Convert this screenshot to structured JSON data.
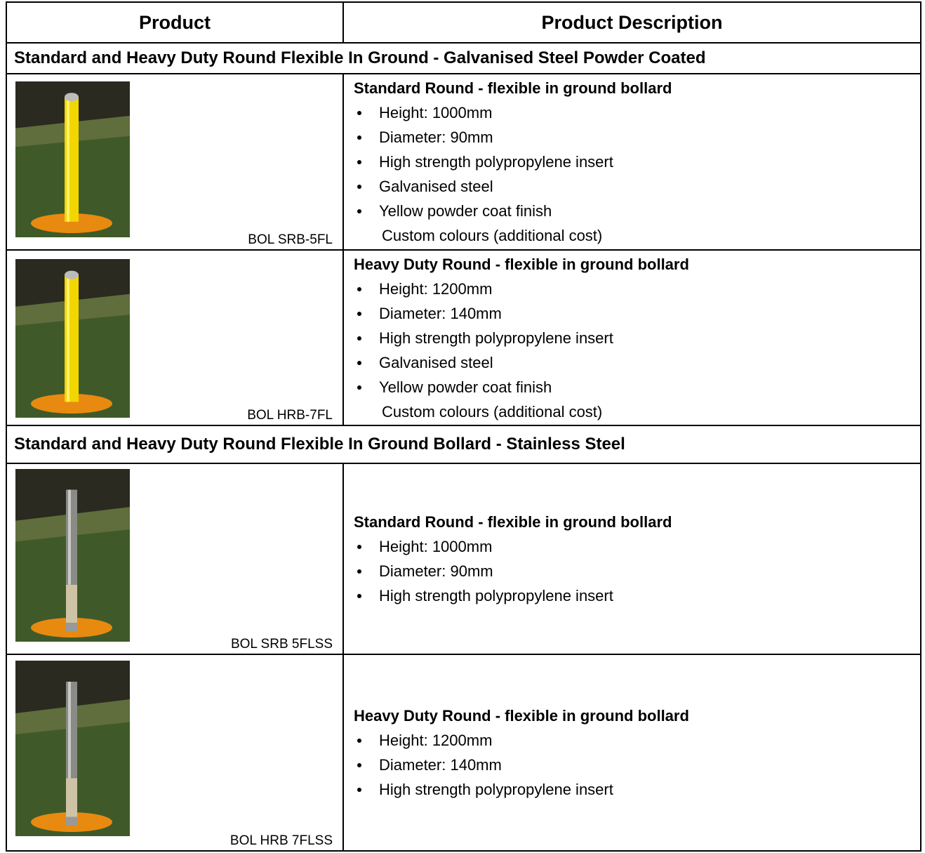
{
  "header": {
    "columns": [
      "Product",
      "Product Description"
    ]
  },
  "sections": [
    {
      "title": "Standard and Heavy Duty Round Flexible In Ground - Galvanised Steel Powder Coated",
      "products": [
        {
          "code": "BOL SRB-5FL",
          "name": "Standard Round - flexible in ground bollard",
          "bullets": [
            "Height: 1000mm",
            "Diameter: 90mm",
            "High strength polypropylene insert",
            "Galvanised steel",
            "Yellow powder coat finish"
          ],
          "note": "Custom colours (additional cost)"
        },
        {
          "code": "BOL HRB-7FL",
          "name": "Heavy Duty Round - flexible in ground bollard",
          "bullets": [
            "Height: 1200mm",
            "Diameter: 140mm",
            "High strength polypropylene insert",
            "Galvanised steel",
            "Yellow powder coat finish"
          ],
          "note": "Custom colours (additional cost)"
        }
      ]
    },
    {
      "title": "Standard and Heavy Duty Round Flexible In Ground Bollard - Stainless Steel",
      "products": [
        {
          "code": "BOL SRB 5FLSS",
          "name": "Standard Round - flexible in ground bollard",
          "bullets": [
            "Height: 1000mm",
            "Diameter: 90mm",
            "High strength polypropylene insert"
          ]
        },
        {
          "code": "BOL HRB 7FLSS",
          "name": "Heavy Duty Round - flexible in ground bollard",
          "bullets": [
            "Height: 1200mm",
            "Diameter: 140mm",
            "High strength polypropylene insert"
          ]
        }
      ]
    }
  ]
}
